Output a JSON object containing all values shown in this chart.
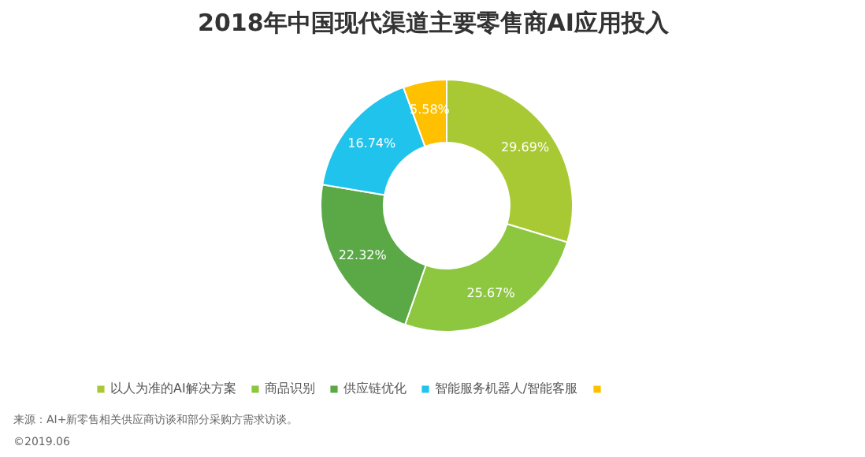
{
  "chart_data": {
    "type": "donut",
    "title": "2018年中国现代渠道主要零售商AI应用投入",
    "categories": [
      "以人为准的AI解决方案",
      "商品识别",
      "供应链优化",
      "智能服务机器人/智能客服",
      null
    ],
    "values": [
      29.69,
      25.67,
      22.32,
      16.74,
      5.58
    ],
    "value_labels": [
      "29.69%",
      "25.67%",
      "22.32%",
      "16.74%",
      "5.58%"
    ],
    "colors": [
      "#a9c934",
      "#8dc63f",
      "#5aa946",
      "#1fc3ec",
      "#ffc000"
    ],
    "legend": "bottom",
    "annotations": [
      "来源：AI+新零售相关供应商访谈和部分采购方需求访谈。",
      "©2019.06"
    ]
  }
}
